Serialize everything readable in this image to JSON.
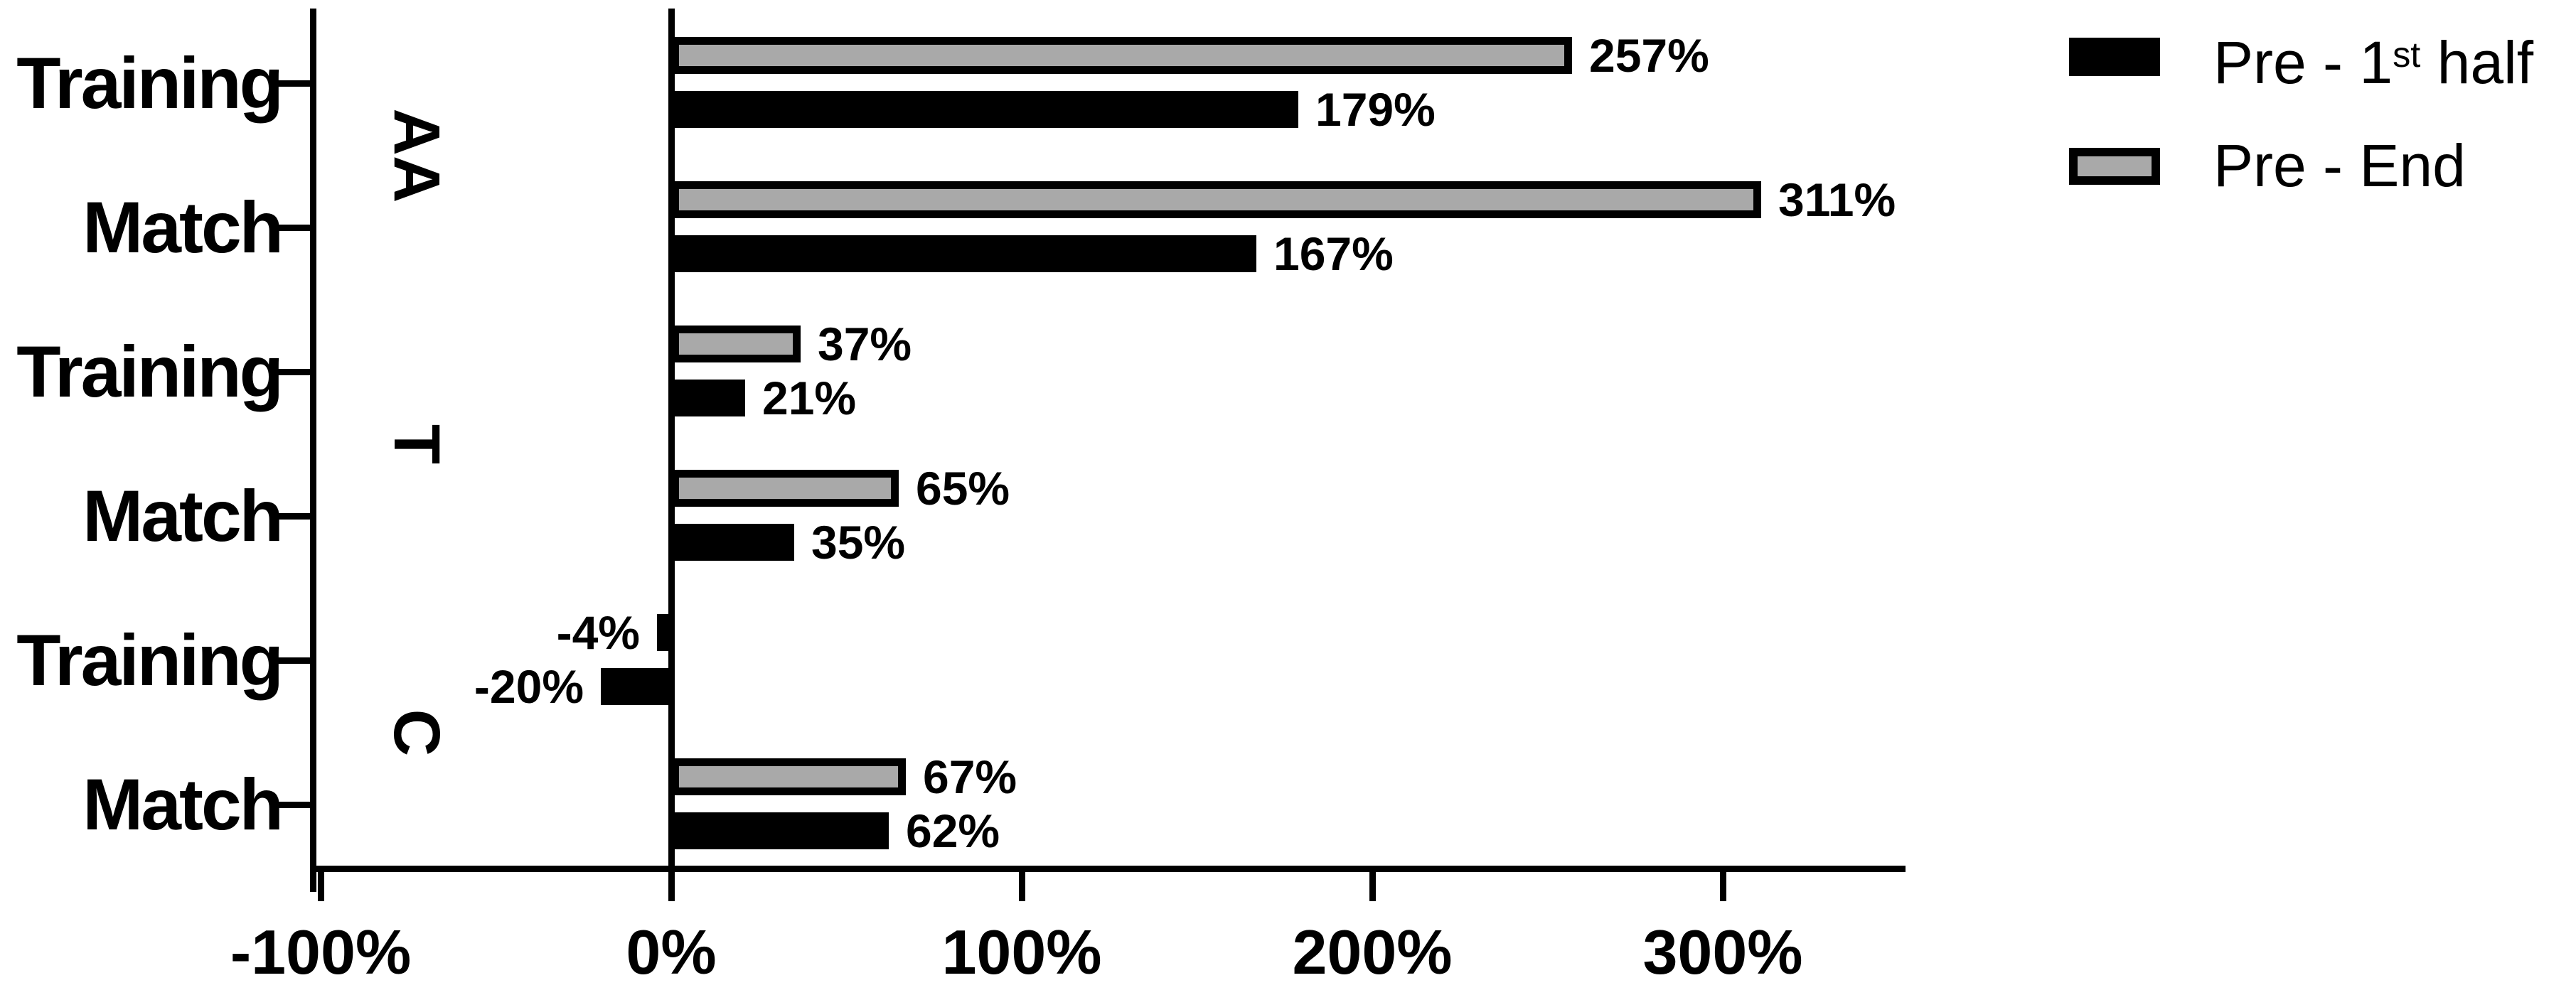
{
  "colors": {
    "series_pre_first_half": "#000000",
    "series_pre_end": "#a9a9a9",
    "axis": "#000000",
    "background": "#ffffff"
  },
  "chart_data": {
    "type": "bar",
    "orientation": "horizontal",
    "title": "",
    "xlabel": "",
    "ylabel": "",
    "unit": "%",
    "grid": false,
    "legend_position": "top-right",
    "x_axis": {
      "tick_labels": [
        "-100%",
        "0%",
        "100%",
        "200%",
        "300%"
      ],
      "tick_values": [
        -100,
        0,
        100,
        200,
        300
      ],
      "range": [
        -100,
        352
      ]
    },
    "categories": [
      "Training",
      "Match",
      "Training",
      "Match",
      "Training",
      "Match"
    ],
    "groups": [
      {
        "label": "AA"
      },
      {
        "label": "T"
      },
      {
        "label": "C"
      }
    ],
    "series": [
      {
        "name": "Pre - End",
        "color": "#a9a9a9",
        "values": [
          257,
          311,
          37,
          65,
          -4,
          67
        ]
      },
      {
        "name": "Pre - 1st half",
        "color": "#000000",
        "values": [
          179,
          167,
          21,
          35,
          -20,
          62
        ]
      }
    ],
    "rows": [
      {
        "group": "AA",
        "category": "Training",
        "values": {
          "pre_end": 257,
          "pre_first_half": 179
        },
        "labels": {
          "pre_end": "257%",
          "pre_first_half": "179%"
        }
      },
      {
        "group": "AA",
        "category": "Match",
        "values": {
          "pre_end": 311,
          "pre_first_half": 167
        },
        "labels": {
          "pre_end": "311%",
          "pre_first_half": "167%"
        }
      },
      {
        "group": "T",
        "category": "Training",
        "values": {
          "pre_end": 37,
          "pre_first_half": 21
        },
        "labels": {
          "pre_end": "37%",
          "pre_first_half": "21%"
        }
      },
      {
        "group": "T",
        "category": "Match",
        "values": {
          "pre_end": 65,
          "pre_first_half": 35
        },
        "labels": {
          "pre_end": "65%",
          "pre_first_half": "35%"
        }
      },
      {
        "group": "C",
        "category": "Training",
        "values": {
          "pre_end": -4,
          "pre_first_half": -20
        },
        "labels": {
          "pre_end": "-4%",
          "pre_first_half": "-20%"
        }
      },
      {
        "group": "C",
        "category": "Match",
        "values": {
          "pre_end": 67,
          "pre_first_half": 62
        },
        "labels": {
          "pre_end": "67%",
          "pre_first_half": "62%"
        }
      }
    ],
    "legend": [
      {
        "name": "Pre - 1st half",
        "name_parts": {
          "prefix": "Pre - 1",
          "sup": "st",
          "suffix": " half"
        },
        "swatch": "solid-black"
      },
      {
        "name": "Pre - End",
        "name_parts": {
          "prefix": "Pre - End",
          "sup": "",
          "suffix": ""
        },
        "swatch": "gray-black-outline"
      }
    ]
  }
}
